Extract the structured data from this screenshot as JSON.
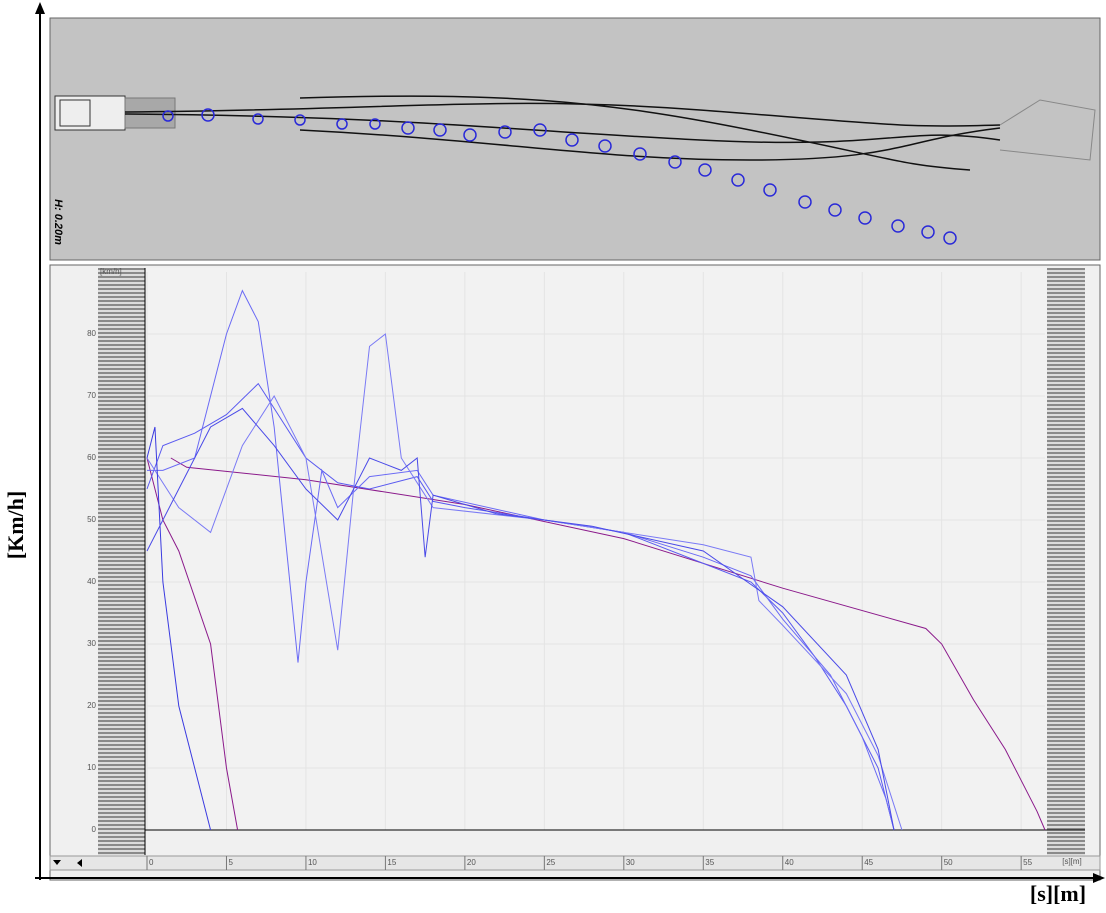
{
  "chart_data": {
    "type": "line",
    "annotations": [
      "H: 0.20m"
    ],
    "y_unit": "[km/h]",
    "x_unit": "[s][m]",
    "ylabel": "[Km/h]",
    "xlabel": "[s][m]",
    "xlim": [
      0,
      56.5
    ],
    "ylim": [
      0,
      90
    ],
    "xticks": [
      0,
      5,
      10,
      15,
      20,
      25,
      30,
      35,
      40,
      45,
      50,
      55
    ],
    "yticks": [
      0,
      10,
      20,
      30,
      40,
      50,
      60,
      70,
      80
    ],
    "grid": true,
    "series": [
      {
        "color": "#8b1a8b",
        "x": [
          1.5,
          2.5,
          10,
          20,
          30,
          40,
          49,
          50,
          52,
          54,
          56,
          56.5
        ],
        "values": [
          60,
          58.5,
          56.5,
          52.5,
          47,
          39,
          32.5,
          30,
          21,
          13,
          3,
          0
        ]
      },
      {
        "color": "#8b1a8b",
        "x": [
          0,
          1,
          2,
          4,
          5,
          5.7
        ],
        "values": [
          60,
          50,
          45,
          30,
          10,
          0
        ]
      },
      {
        "color": "#5a5af0",
        "x": [
          0,
          1,
          3,
          5,
          7,
          8,
          10,
          12,
          14,
          17,
          18,
          20,
          25,
          30,
          35,
          38,
          40,
          42,
          44,
          46,
          47
        ],
        "values": [
          55,
          62,
          64,
          67,
          72,
          68,
          60,
          56,
          55,
          57,
          53,
          52,
          50,
          48,
          43,
          40,
          35,
          28,
          20,
          10,
          0
        ]
      },
      {
        "color": "#6a6af5",
        "x": [
          0,
          1,
          3,
          5,
          6,
          7,
          8,
          9.5,
          10,
          11,
          12,
          14,
          17,
          18,
          25,
          30,
          35,
          38,
          40,
          43,
          45,
          46.5,
          47
        ],
        "values": [
          58,
          58,
          60,
          80,
          87,
          82,
          65,
          27,
          40,
          58,
          52,
          57,
          58,
          54,
          50,
          48,
          44,
          41,
          34,
          25,
          15,
          5,
          0
        ]
      },
      {
        "color": "#7a7af5",
        "x": [
          0,
          2,
          4,
          6,
          8,
          10,
          12,
          13,
          14,
          15,
          16,
          17,
          18,
          25,
          30,
          35,
          38,
          38.5,
          40,
          44,
          46,
          47.5
        ],
        "values": [
          60,
          52,
          48,
          62,
          70,
          60,
          29,
          55,
          78,
          80,
          60,
          56,
          52,
          50,
          48,
          46,
          44,
          37,
          33,
          22,
          12,
          0
        ]
      },
      {
        "color": "#3a3ae0",
        "x": [
          0,
          0.5,
          1,
          2,
          3,
          4
        ],
        "values": [
          60,
          65,
          40,
          20,
          10,
          0
        ]
      },
      {
        "color": "#4a4ae8",
        "x": [
          0,
          2,
          4,
          6,
          8,
          10,
          12,
          14,
          16,
          17,
          17.5,
          18,
          22,
          28,
          35,
          40,
          44,
          46,
          47
        ],
        "values": [
          45,
          55,
          65,
          68,
          62,
          55,
          50,
          60,
          58,
          60,
          44,
          54,
          51,
          49,
          45,
          36,
          25,
          13,
          0
        ]
      }
    ]
  }
}
